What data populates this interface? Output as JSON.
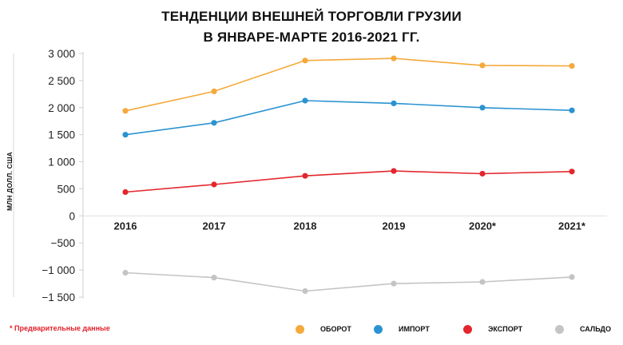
{
  "title_line1": "ТЕНДЕНЦИИ ВНЕШНЕЙ ТОРГОВЛИ ГРУЗИИ",
  "title_line2": "В ЯНВАРЕ-МАРТЕ 2016-2021 ГГ.",
  "footnote": "* Предварительные данные",
  "colors": {
    "turnover": "#f5a93b",
    "import": "#2b93d1",
    "export": "#e3262d",
    "balance": "#c4c4c4"
  },
  "chart_data": {
    "type": "line",
    "title": "ТЕНДЕНЦИИ ВНЕШНЕЙ ТОРГОВЛИ ГРУЗИИ В ЯНВАРЕ-МАРТЕ 2016-2021 ГГ.",
    "ylabel": "МЛН ДОЛЛ. США",
    "xlabel": "",
    "categories": [
      "2016",
      "2017",
      "2018",
      "2019",
      "2020*",
      "2021*"
    ],
    "ylim": [
      -1500,
      3000
    ],
    "yticks": [
      3000,
      2500,
      2000,
      1500,
      1000,
      500,
      0,
      -500,
      -1000,
      -1500
    ],
    "ytick_labels": [
      "3 000",
      "2 500",
      "2 000",
      "1 500",
      "1 000",
      "500",
      "0",
      "−500",
      "−1 000",
      "−1 500"
    ],
    "grid": false,
    "legend_position": "bottom",
    "series": [
      {
        "name": "ОБОРОТ",
        "key": "turnover",
        "values": [
          1940,
          2300,
          2870,
          2910,
          2780,
          2770
        ]
      },
      {
        "name": "ИМПОРТ",
        "key": "import",
        "values": [
          1500,
          1720,
          2130,
          2080,
          2000,
          1950
        ]
      },
      {
        "name": "ЭКСПОРТ",
        "key": "export",
        "values": [
          440,
          580,
          740,
          830,
          780,
          820
        ]
      },
      {
        "name": "САЛЬДО",
        "key": "balance",
        "values": [
          -1050,
          -1140,
          -1390,
          -1250,
          -1220,
          -1130
        ]
      }
    ]
  }
}
